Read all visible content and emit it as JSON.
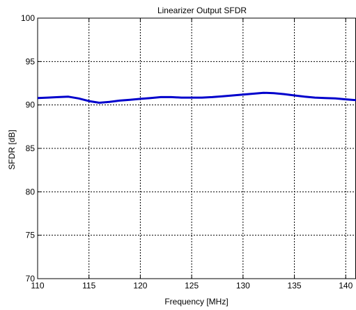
{
  "chart_data": {
    "type": "line",
    "title": "Linearizer Output SFDR",
    "xlabel": "Frequency [MHz]",
    "ylabel": "SFDR [dB]",
    "xlim": [
      110,
      141
    ],
    "ylim": [
      70,
      100
    ],
    "grid": true,
    "x_ticks": [
      110,
      115,
      120,
      125,
      130,
      135,
      140
    ],
    "y_ticks": [
      70,
      75,
      80,
      85,
      90,
      95,
      100
    ],
    "series": [
      {
        "color": "#0000cc",
        "x": [
          110,
          111,
          112,
          113,
          114,
          115,
          116,
          117,
          118,
          119,
          120,
          121,
          122,
          123,
          124,
          125,
          126,
          127,
          128,
          129,
          130,
          131,
          132,
          133,
          134,
          135,
          136,
          137,
          138,
          139,
          140,
          141
        ],
        "y": [
          90.8,
          90.85,
          90.9,
          90.95,
          90.75,
          90.45,
          90.25,
          90.35,
          90.5,
          90.6,
          90.7,
          90.8,
          90.9,
          90.9,
          90.85,
          90.85,
          90.85,
          90.9,
          91.0,
          91.1,
          91.2,
          91.3,
          91.4,
          91.35,
          91.25,
          91.1,
          90.95,
          90.85,
          90.8,
          90.75,
          90.65,
          90.55
        ]
      }
    ]
  }
}
